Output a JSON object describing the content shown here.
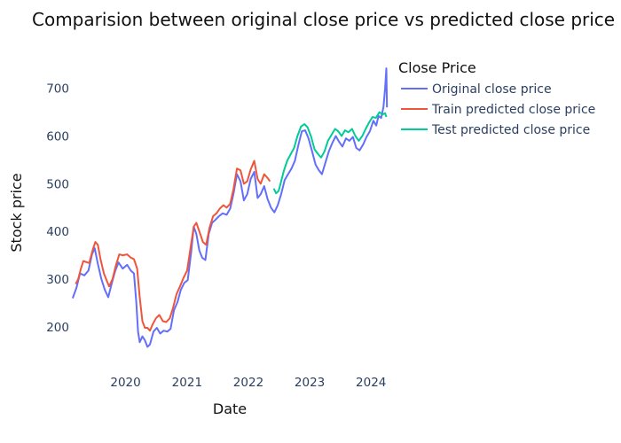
{
  "chart_data": {
    "type": "line",
    "title": "Comparision between original close price vs predicted close price",
    "xlabel": "Date",
    "ylabel": "Stock price",
    "xlim": [
      "2019-02-10",
      "2024-04-25"
    ],
    "ylim": [
      120,
      770
    ],
    "x_ticks": [
      "2020",
      "2021",
      "2022",
      "2023",
      "2024"
    ],
    "y_ticks": [
      200,
      300,
      400,
      500,
      600,
      700
    ],
    "grid": false,
    "legend": {
      "title": "Close Price",
      "position": "top-right"
    },
    "series": [
      {
        "name": "Original close price",
        "color": "#636efa",
        "points": [
          [
            "2019-02-20",
            260
          ],
          [
            "2019-03-15",
            282
          ],
          [
            "2019-04-05",
            312
          ],
          [
            "2019-05-01",
            308
          ],
          [
            "2019-05-25",
            318
          ],
          [
            "2019-06-15",
            352
          ],
          [
            "2019-07-01",
            365
          ],
          [
            "2019-07-20",
            332
          ],
          [
            "2019-08-10",
            300
          ],
          [
            "2019-08-30",
            278
          ],
          [
            "2019-09-20",
            262
          ],
          [
            "2019-10-10",
            290
          ],
          [
            "2019-11-01",
            318
          ],
          [
            "2019-11-20",
            335
          ],
          [
            "2019-12-15",
            322
          ],
          [
            "2020-01-10",
            330
          ],
          [
            "2020-02-01",
            318
          ],
          [
            "2020-02-20",
            312
          ],
          [
            "2020-03-05",
            250
          ],
          [
            "2020-03-15",
            190
          ],
          [
            "2020-03-25",
            168
          ],
          [
            "2020-04-10",
            180
          ],
          [
            "2020-04-25",
            172
          ],
          [
            "2020-05-10",
            158
          ],
          [
            "2020-05-25",
            163
          ],
          [
            "2020-06-15",
            190
          ],
          [
            "2020-07-05",
            198
          ],
          [
            "2020-07-25",
            186
          ],
          [
            "2020-08-15",
            192
          ],
          [
            "2020-09-05",
            190
          ],
          [
            "2020-09-25",
            196
          ],
          [
            "2020-10-15",
            235
          ],
          [
            "2020-11-05",
            252
          ],
          [
            "2020-11-25",
            278
          ],
          [
            "2020-12-15",
            292
          ],
          [
            "2021-01-05",
            298
          ],
          [
            "2021-01-25",
            355
          ],
          [
            "2021-02-10",
            410
          ],
          [
            "2021-02-25",
            395
          ],
          [
            "2021-03-15",
            360
          ],
          [
            "2021-04-01",
            345
          ],
          [
            "2021-04-20",
            340
          ],
          [
            "2021-05-10",
            395
          ],
          [
            "2021-05-30",
            418
          ],
          [
            "2021-06-20",
            425
          ],
          [
            "2021-07-10",
            432
          ],
          [
            "2021-08-01",
            438
          ],
          [
            "2021-08-25",
            435
          ],
          [
            "2021-09-15",
            448
          ],
          [
            "2021-10-05",
            480
          ],
          [
            "2021-10-25",
            520
          ],
          [
            "2021-11-15",
            505
          ],
          [
            "2021-12-05",
            465
          ],
          [
            "2021-12-25",
            478
          ],
          [
            "2022-01-15",
            510
          ],
          [
            "2022-02-05",
            525
          ],
          [
            "2022-02-25",
            470
          ],
          [
            "2022-03-15",
            478
          ],
          [
            "2022-04-05",
            495
          ],
          [
            "2022-04-25",
            468
          ],
          [
            "2022-05-15",
            450
          ],
          [
            "2022-06-05",
            440
          ],
          [
            "2022-06-25",
            455
          ],
          [
            "2022-07-15",
            478
          ],
          [
            "2022-08-05",
            508
          ],
          [
            "2022-08-25",
            520
          ],
          [
            "2022-09-15",
            532
          ],
          [
            "2022-10-05",
            548
          ],
          [
            "2022-10-25",
            580
          ],
          [
            "2022-11-15",
            610
          ],
          [
            "2022-12-05",
            612
          ],
          [
            "2022-12-25",
            595
          ],
          [
            "2023-01-15",
            568
          ],
          [
            "2023-02-05",
            540
          ],
          [
            "2023-02-25",
            528
          ],
          [
            "2023-03-15",
            520
          ],
          [
            "2023-04-05",
            545
          ],
          [
            "2023-04-25",
            568
          ],
          [
            "2023-05-15",
            585
          ],
          [
            "2023-06-05",
            600
          ],
          [
            "2023-06-25",
            588
          ],
          [
            "2023-07-15",
            578
          ],
          [
            "2023-08-05",
            595
          ],
          [
            "2023-08-25",
            590
          ],
          [
            "2023-09-15",
            598
          ],
          [
            "2023-10-05",
            575
          ],
          [
            "2023-10-25",
            570
          ],
          [
            "2023-11-15",
            582
          ],
          [
            "2023-12-05",
            598
          ],
          [
            "2023-12-25",
            610
          ],
          [
            "2024-01-15",
            632
          ],
          [
            "2024-02-01",
            622
          ],
          [
            "2024-02-15",
            642
          ],
          [
            "2024-03-01",
            638
          ],
          [
            "2024-03-15",
            660
          ],
          [
            "2024-03-25",
            700
          ],
          [
            "2024-04-01",
            742
          ],
          [
            "2024-04-05",
            660
          ]
        ]
      },
      {
        "name": "Train predicted close price",
        "color": "#ef553b",
        "points": [
          [
            "2019-03-10",
            290
          ],
          [
            "2019-03-25",
            300
          ],
          [
            "2019-04-10",
            322
          ],
          [
            "2019-04-25",
            338
          ],
          [
            "2019-05-10",
            336
          ],
          [
            "2019-05-30",
            334
          ],
          [
            "2019-06-20",
            362
          ],
          [
            "2019-07-05",
            378
          ],
          [
            "2019-07-20",
            372
          ],
          [
            "2019-08-05",
            342
          ],
          [
            "2019-08-25",
            312
          ],
          [
            "2019-09-10",
            298
          ],
          [
            "2019-09-25",
            285
          ],
          [
            "2019-10-15",
            300
          ],
          [
            "2019-11-05",
            330
          ],
          [
            "2019-11-25",
            352
          ],
          [
            "2019-12-15",
            350
          ],
          [
            "2020-01-10",
            352
          ],
          [
            "2020-02-01",
            345
          ],
          [
            "2020-02-20",
            342
          ],
          [
            "2020-03-10",
            322
          ],
          [
            "2020-03-25",
            262
          ],
          [
            "2020-04-10",
            212
          ],
          [
            "2020-04-25",
            198
          ],
          [
            "2020-05-10",
            198
          ],
          [
            "2020-05-25",
            192
          ],
          [
            "2020-06-10",
            205
          ],
          [
            "2020-06-30",
            218
          ],
          [
            "2020-07-20",
            225
          ],
          [
            "2020-08-10",
            212
          ],
          [
            "2020-08-30",
            210
          ],
          [
            "2020-09-20",
            218
          ],
          [
            "2020-10-10",
            240
          ],
          [
            "2020-10-30",
            268
          ],
          [
            "2020-11-20",
            285
          ],
          [
            "2020-12-10",
            302
          ],
          [
            "2021-01-01",
            318
          ],
          [
            "2021-01-20",
            362
          ],
          [
            "2021-02-10",
            410
          ],
          [
            "2021-02-25",
            418
          ],
          [
            "2021-03-15",
            400
          ],
          [
            "2021-04-05",
            378
          ],
          [
            "2021-04-25",
            372
          ],
          [
            "2021-05-15",
            408
          ],
          [
            "2021-06-05",
            432
          ],
          [
            "2021-06-25",
            438
          ],
          [
            "2021-07-15",
            448
          ],
          [
            "2021-08-05",
            455
          ],
          [
            "2021-08-25",
            450
          ],
          [
            "2021-09-15",
            458
          ],
          [
            "2021-10-05",
            490
          ],
          [
            "2021-10-25",
            532
          ],
          [
            "2021-11-15",
            528
          ],
          [
            "2021-12-05",
            500
          ],
          [
            "2021-12-25",
            505
          ],
          [
            "2022-01-15",
            530
          ],
          [
            "2022-02-05",
            548
          ],
          [
            "2022-02-25",
            510
          ],
          [
            "2022-03-15",
            500
          ],
          [
            "2022-04-05",
            520
          ],
          [
            "2022-04-25",
            512
          ],
          [
            "2022-05-10",
            505
          ]
        ]
      },
      {
        "name": "Test predicted close price",
        "color": "#00cc96",
        "points": [
          [
            "2022-06-01",
            490
          ],
          [
            "2022-06-15",
            480
          ],
          [
            "2022-06-30",
            485
          ],
          [
            "2022-07-15",
            505
          ],
          [
            "2022-08-01",
            528
          ],
          [
            "2022-08-20",
            548
          ],
          [
            "2022-09-10",
            562
          ],
          [
            "2022-09-30",
            575
          ],
          [
            "2022-10-20",
            600
          ],
          [
            "2022-11-10",
            620
          ],
          [
            "2022-12-01",
            625
          ],
          [
            "2022-12-20",
            618
          ],
          [
            "2023-01-10",
            598
          ],
          [
            "2023-01-30",
            572
          ],
          [
            "2023-02-20",
            562
          ],
          [
            "2023-03-10",
            555
          ],
          [
            "2023-03-30",
            568
          ],
          [
            "2023-04-20",
            590
          ],
          [
            "2023-05-10",
            602
          ],
          [
            "2023-06-01",
            615
          ],
          [
            "2023-06-20",
            610
          ],
          [
            "2023-07-10",
            600
          ],
          [
            "2023-07-30",
            612
          ],
          [
            "2023-08-20",
            608
          ],
          [
            "2023-09-10",
            615
          ],
          [
            "2023-09-30",
            600
          ],
          [
            "2023-10-20",
            590
          ],
          [
            "2023-11-10",
            600
          ],
          [
            "2023-11-30",
            615
          ],
          [
            "2023-12-20",
            628
          ],
          [
            "2024-01-10",
            640
          ],
          [
            "2024-01-30",
            638
          ],
          [
            "2024-02-20",
            650
          ],
          [
            "2024-03-10",
            645
          ],
          [
            "2024-03-25",
            648
          ],
          [
            "2024-04-01",
            640
          ]
        ]
      }
    ]
  }
}
